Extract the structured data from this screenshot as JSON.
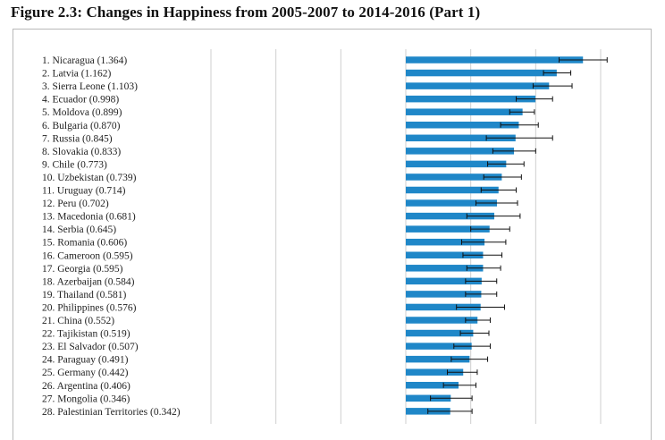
{
  "figure": {
    "title": "Figure 2.3: Changes in Happiness from 2005-2007 to 2014-2016 (Part 1)"
  },
  "chart_data": {
    "type": "bar",
    "orientation": "horizontal",
    "title": "Figure 2.3: Changes in Happiness from 2005-2007 to 2014-2016 (Part 1)",
    "bar_color": "#1f87c8",
    "errorbar_color": "#111111",
    "grid": true,
    "xlim": [
      -1.5,
      1.5
    ],
    "labels": [
      "1.   Nicaragua (1.364)",
      "2.   Latvia (1.162)",
      "3.   Sierra Leone (1.103)",
      "4.   Ecuador (0.998)",
      "5.   Moldova (0.899)",
      "6.   Bulgaria (0.870)",
      "7.   Russia (0.845)",
      "8.   Slovakia (0.833)",
      "9.   Chile (0.773)",
      "10.  Uzbekistan (0.739)",
      "11.  Uruguay (0.714)",
      "12.  Peru (0.702)",
      "13.  Macedonia (0.681)",
      "14.  Serbia (0.645)",
      "15.  Romania (0.606)",
      "16.  Cameroon (0.595)",
      "17.  Georgia (0.595)",
      "18.  Azerbaijan (0.584)",
      "19.  Thailand (0.581)",
      "20.  Philippines (0.576)",
      "21.  China (0.552)",
      "22.  Tajikistan (0.519)",
      "23.  El Salvador (0.507)",
      "24.  Paraguay (0.491)",
      "25.  Germany (0.442)",
      "26.  Argentina (0.406)",
      "27.  Mongolia (0.346)",
      "28.  Palestinian Territories (0.342)"
    ],
    "values": [
      1.364,
      1.162,
      1.103,
      0.998,
      0.899,
      0.87,
      0.845,
      0.833,
      0.773,
      0.739,
      0.714,
      0.702,
      0.681,
      0.645,
      0.606,
      0.595,
      0.595,
      0.584,
      0.581,
      0.576,
      0.552,
      0.519,
      0.507,
      0.491,
      0.442,
      0.406,
      0.346,
      0.342
    ],
    "ci_low": [
      1.18,
      1.06,
      0.98,
      0.85,
      0.8,
      0.73,
      0.62,
      0.67,
      0.63,
      0.6,
      0.58,
      0.54,
      0.47,
      0.5,
      0.43,
      0.44,
      0.47,
      0.46,
      0.46,
      0.39,
      0.46,
      0.42,
      0.37,
      0.35,
      0.32,
      0.29,
      0.19,
      0.17
    ],
    "ci_high": [
      1.55,
      1.27,
      1.28,
      1.13,
      0.99,
      1.02,
      1.13,
      1.0,
      0.91,
      0.89,
      0.85,
      0.86,
      0.88,
      0.8,
      0.77,
      0.74,
      0.73,
      0.7,
      0.7,
      0.76,
      0.65,
      0.64,
      0.65,
      0.63,
      0.55,
      0.54,
      0.51,
      0.51
    ]
  }
}
